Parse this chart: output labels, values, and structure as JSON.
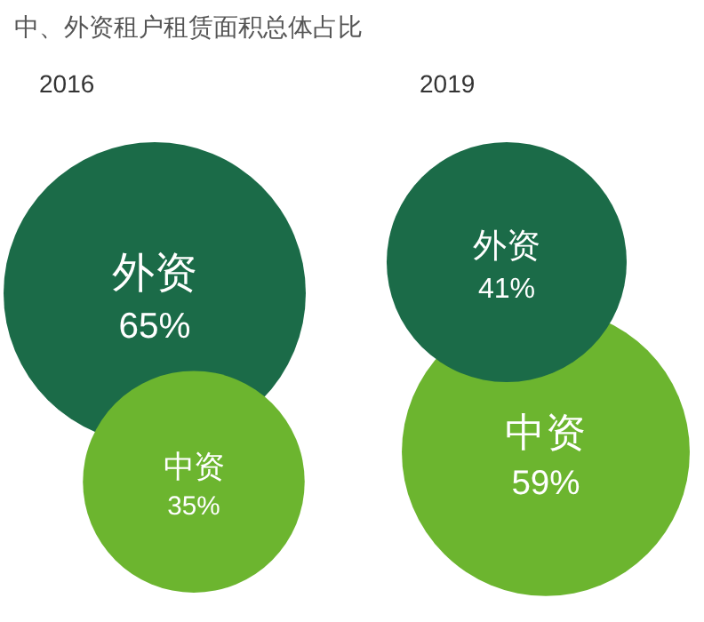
{
  "chart_data": [
    {
      "type": "other",
      "title": "中、外资租户租赁面积总体占比",
      "subtitle": "2016",
      "categories": [
        "外资",
        "中资"
      ],
      "values": [
        65,
        35
      ],
      "value_labels": [
        "65%",
        "35%"
      ],
      "colors": [
        "#1b6b48",
        "#6cb52f"
      ]
    },
    {
      "type": "other",
      "subtitle": "2019",
      "categories": [
        "外资",
        "中资"
      ],
      "values": [
        41,
        59
      ],
      "value_labels": [
        "41%",
        "59%"
      ],
      "colors": [
        "#1b6b48",
        "#6cb52f"
      ]
    }
  ]
}
